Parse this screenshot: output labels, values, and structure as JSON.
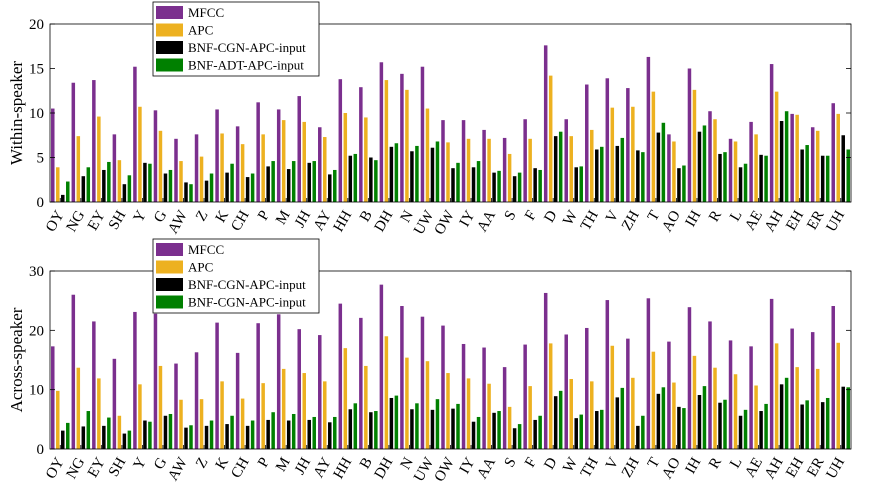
{
  "chart_data": [
    {
      "type": "bar",
      "ylabel": "Within-speaker",
      "ylim": [
        0,
        20
      ],
      "yticks": [
        0,
        5,
        10,
        15,
        20
      ],
      "categories": [
        "OY",
        "NG",
        "EY",
        "SH",
        "Y",
        "G",
        "AW",
        "Z",
        "K",
        "CH",
        "P",
        "M",
        "JH",
        "AY",
        "HH",
        "B",
        "DH",
        "N",
        "UW",
        "OW",
        "IY",
        "AA",
        "S",
        "F",
        "D",
        "W",
        "TH",
        "V",
        "ZH",
        "T",
        "AO",
        "IH",
        "R",
        "L",
        "AE",
        "AH",
        "EH",
        "ER",
        "UH"
      ],
      "legend_position": "top-left",
      "series": [
        {
          "name": "MFCC",
          "color": "#7b2f8e",
          "values": [
            10.5,
            13.4,
            13.7,
            7.6,
            15.2,
            10.3,
            7.1,
            7.6,
            10.4,
            8.5,
            11.2,
            10.4,
            11.9,
            8.4,
            13.8,
            12.9,
            15.7,
            14.4,
            15.2,
            9.2,
            9.2,
            8.1,
            7.2,
            9.3,
            17.6,
            9.3,
            13.2,
            13.9,
            12.8,
            16.3,
            7.6,
            15.0,
            10.2,
            7.1,
            9.0,
            15.5,
            9.9,
            8.4,
            11.1
          ]
        },
        {
          "name": "APC",
          "color": "#edb120",
          "values": [
            3.9,
            7.4,
            9.6,
            4.7,
            10.7,
            8.0,
            4.6,
            5.1,
            7.7,
            6.5,
            7.6,
            9.2,
            9.0,
            7.3,
            10.0,
            9.5,
            13.7,
            12.6,
            10.5,
            6.7,
            7.1,
            7.1,
            5.4,
            7.1,
            14.2,
            7.4,
            8.1,
            10.6,
            10.7,
            12.4,
            6.8,
            12.6,
            9.3,
            6.8,
            7.6,
            12.4,
            9.8,
            8.0,
            9.9
          ]
        },
        {
          "name": "BNF-CGN-APC-input",
          "color": "#000000",
          "values": [
            0.8,
            2.9,
            3.6,
            2.0,
            4.4,
            3.2,
            2.2,
            2.4,
            3.3,
            2.8,
            4.0,
            3.7,
            4.4,
            3.1,
            5.2,
            5.0,
            6.2,
            5.7,
            6.1,
            3.8,
            3.9,
            3.3,
            2.9,
            3.8,
            7.4,
            3.9,
            5.9,
            6.3,
            5.8,
            7.8,
            3.8,
            7.9,
            5.4,
            3.9,
            5.3,
            9.1,
            5.9,
            5.2,
            7.5
          ]
        },
        {
          "name": "BNF-ADT-APC-input",
          "color": "#008000",
          "values": [
            2.3,
            3.9,
            4.5,
            3.0,
            4.3,
            3.6,
            2.0,
            3.2,
            4.3,
            3.2,
            4.6,
            4.6,
            4.6,
            3.6,
            5.4,
            4.7,
            6.6,
            6.3,
            6.8,
            4.4,
            4.6,
            3.5,
            3.3,
            3.6,
            7.9,
            4.0,
            6.2,
            7.2,
            5.6,
            8.9,
            4.1,
            8.6,
            5.6,
            4.3,
            5.2,
            10.2,
            6.4,
            5.2,
            5.9
          ]
        }
      ]
    },
    {
      "type": "bar",
      "ylabel": "Across-speaker",
      "ylim": [
        0,
        30
      ],
      "yticks": [
        0,
        10,
        20,
        30
      ],
      "categories": [
        "OY",
        "NG",
        "EY",
        "SH",
        "Y",
        "G",
        "AW",
        "Z",
        "K",
        "CH",
        "P",
        "M",
        "JH",
        "AY",
        "HH",
        "B",
        "DH",
        "N",
        "UW",
        "OW",
        "IY",
        "AA",
        "S",
        "F",
        "D",
        "W",
        "TH",
        "V",
        "ZH",
        "T",
        "AO",
        "IH",
        "R",
        "L",
        "AE",
        "AH",
        "EH",
        "ER",
        "UH"
      ],
      "legend_position": "top-left",
      "series": [
        {
          "name": "MFCC",
          "color": "#7b2f8e",
          "values": [
            17.3,
            26.0,
            21.5,
            15.2,
            23.1,
            22.8,
            14.4,
            16.3,
            21.3,
            16.2,
            21.2,
            22.7,
            20.2,
            19.2,
            24.5,
            22.1,
            27.7,
            24.1,
            22.3,
            20.8,
            17.7,
            17.1,
            13.8,
            17.6,
            26.3,
            19.3,
            20.4,
            25.1,
            18.6,
            25.4,
            18.1,
            23.9,
            21.5,
            18.3,
            17.3,
            25.3,
            20.3,
            19.7,
            24.1
          ]
        },
        {
          "name": "APC",
          "color": "#edb120",
          "values": [
            9.8,
            13.7,
            11.9,
            5.6,
            10.9,
            14.0,
            8.3,
            8.4,
            11.4,
            8.5,
            11.1,
            13.5,
            12.8,
            11.4,
            17.0,
            14.0,
            19.0,
            15.4,
            14.8,
            12.8,
            11.9,
            11.0,
            7.1,
            10.6,
            17.8,
            11.8,
            11.4,
            17.4,
            12.0,
            16.4,
            11.2,
            15.7,
            13.7,
            12.6,
            10.7,
            17.8,
            13.8,
            13.5,
            17.9
          ]
        },
        {
          "name": "BNF-CGN-APC-input",
          "color": "#000000",
          "values": [
            3.1,
            3.8,
            3.9,
            2.6,
            4.8,
            5.6,
            3.6,
            3.9,
            4.2,
            3.9,
            4.9,
            4.8,
            4.9,
            4.5,
            6.7,
            6.2,
            8.6,
            6.7,
            6.6,
            6.8,
            4.6,
            6.1,
            3.5,
            4.9,
            8.9,
            5.2,
            6.4,
            8.7,
            3.9,
            9.3,
            7.1,
            9.1,
            7.8,
            5.6,
            6.4,
            10.9,
            7.5,
            7.9,
            10.5
          ]
        },
        {
          "name": "BNF-CGN-APC-input",
          "color": "#008000",
          "values": [
            4.4,
            6.4,
            5.3,
            3.1,
            4.6,
            5.9,
            4.0,
            4.8,
            5.6,
            4.8,
            6.2,
            5.9,
            5.4,
            5.4,
            7.7,
            6.4,
            9.0,
            7.7,
            8.4,
            7.6,
            5.4,
            6.4,
            4.2,
            5.6,
            9.8,
            5.8,
            6.6,
            10.3,
            5.6,
            10.4,
            6.9,
            10.6,
            8.3,
            6.6,
            7.6,
            12.0,
            8.2,
            8.6,
            10.4
          ]
        }
      ]
    }
  ]
}
